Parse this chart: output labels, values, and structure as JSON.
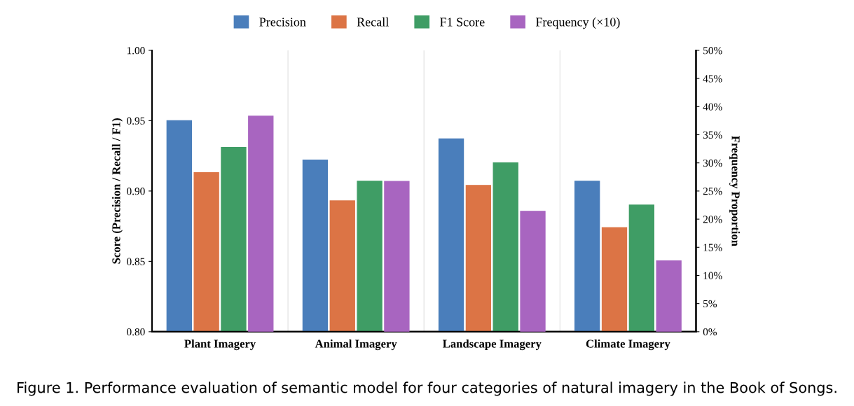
{
  "chart_data": {
    "type": "bar",
    "categories": [
      "Plant Imagery",
      "Animal Imagery",
      "Landscape Imagery",
      "Climate Imagery"
    ],
    "series": [
      {
        "name": "Precision",
        "color": "#4a7ebb",
        "values": [
          0.95,
          0.922,
          0.937,
          0.907
        ]
      },
      {
        "name": "Recall",
        "color": "#dc7445",
        "values": [
          0.913,
          0.893,
          0.904,
          0.874
        ]
      },
      {
        "name": "F1 Score",
        "color": "#3f9d65",
        "values": [
          0.931,
          0.907,
          0.92,
          0.89
        ]
      },
      {
        "name": "Frequency (×10)",
        "color": "#a865c0",
        "values": [
          38.3,
          26.7,
          21.4,
          12.6
        ],
        "axis": "y2"
      }
    ],
    "ylabel": "Score (Precision / Recall / F1)",
    "y2label": "Frequency Proportion",
    "ylim": [
      0.8,
      1.0
    ],
    "yticks": [
      {
        "value": 0.8,
        "label": "0.80"
      },
      {
        "value": 0.85,
        "label": "0.85"
      },
      {
        "value": 0.9,
        "label": "0.90"
      },
      {
        "value": 0.95,
        "label": "0.95"
      },
      {
        "value": 1.0,
        "label": "1.00"
      }
    ],
    "y2lim": [
      0,
      50
    ],
    "y2ticks": [
      {
        "value": 0,
        "label": "0%"
      },
      {
        "value": 5,
        "label": "5%"
      },
      {
        "value": 10,
        "label": "10%"
      },
      {
        "value": 15,
        "label": "15%"
      },
      {
        "value": 20,
        "label": "20%"
      },
      {
        "value": 25,
        "label": "25%"
      },
      {
        "value": 30,
        "label": "30%"
      },
      {
        "value": 35,
        "label": "35%"
      },
      {
        "value": 40,
        "label": "40%"
      },
      {
        "value": 45,
        "label": "45%"
      },
      {
        "value": 50,
        "label": "50%"
      }
    ],
    "legend": "top",
    "grid": "x",
    "annotations": [
      "Figure 1. Performance evaluation of semantic model for four categories of natural imagery in the Book of Songs."
    ]
  }
}
